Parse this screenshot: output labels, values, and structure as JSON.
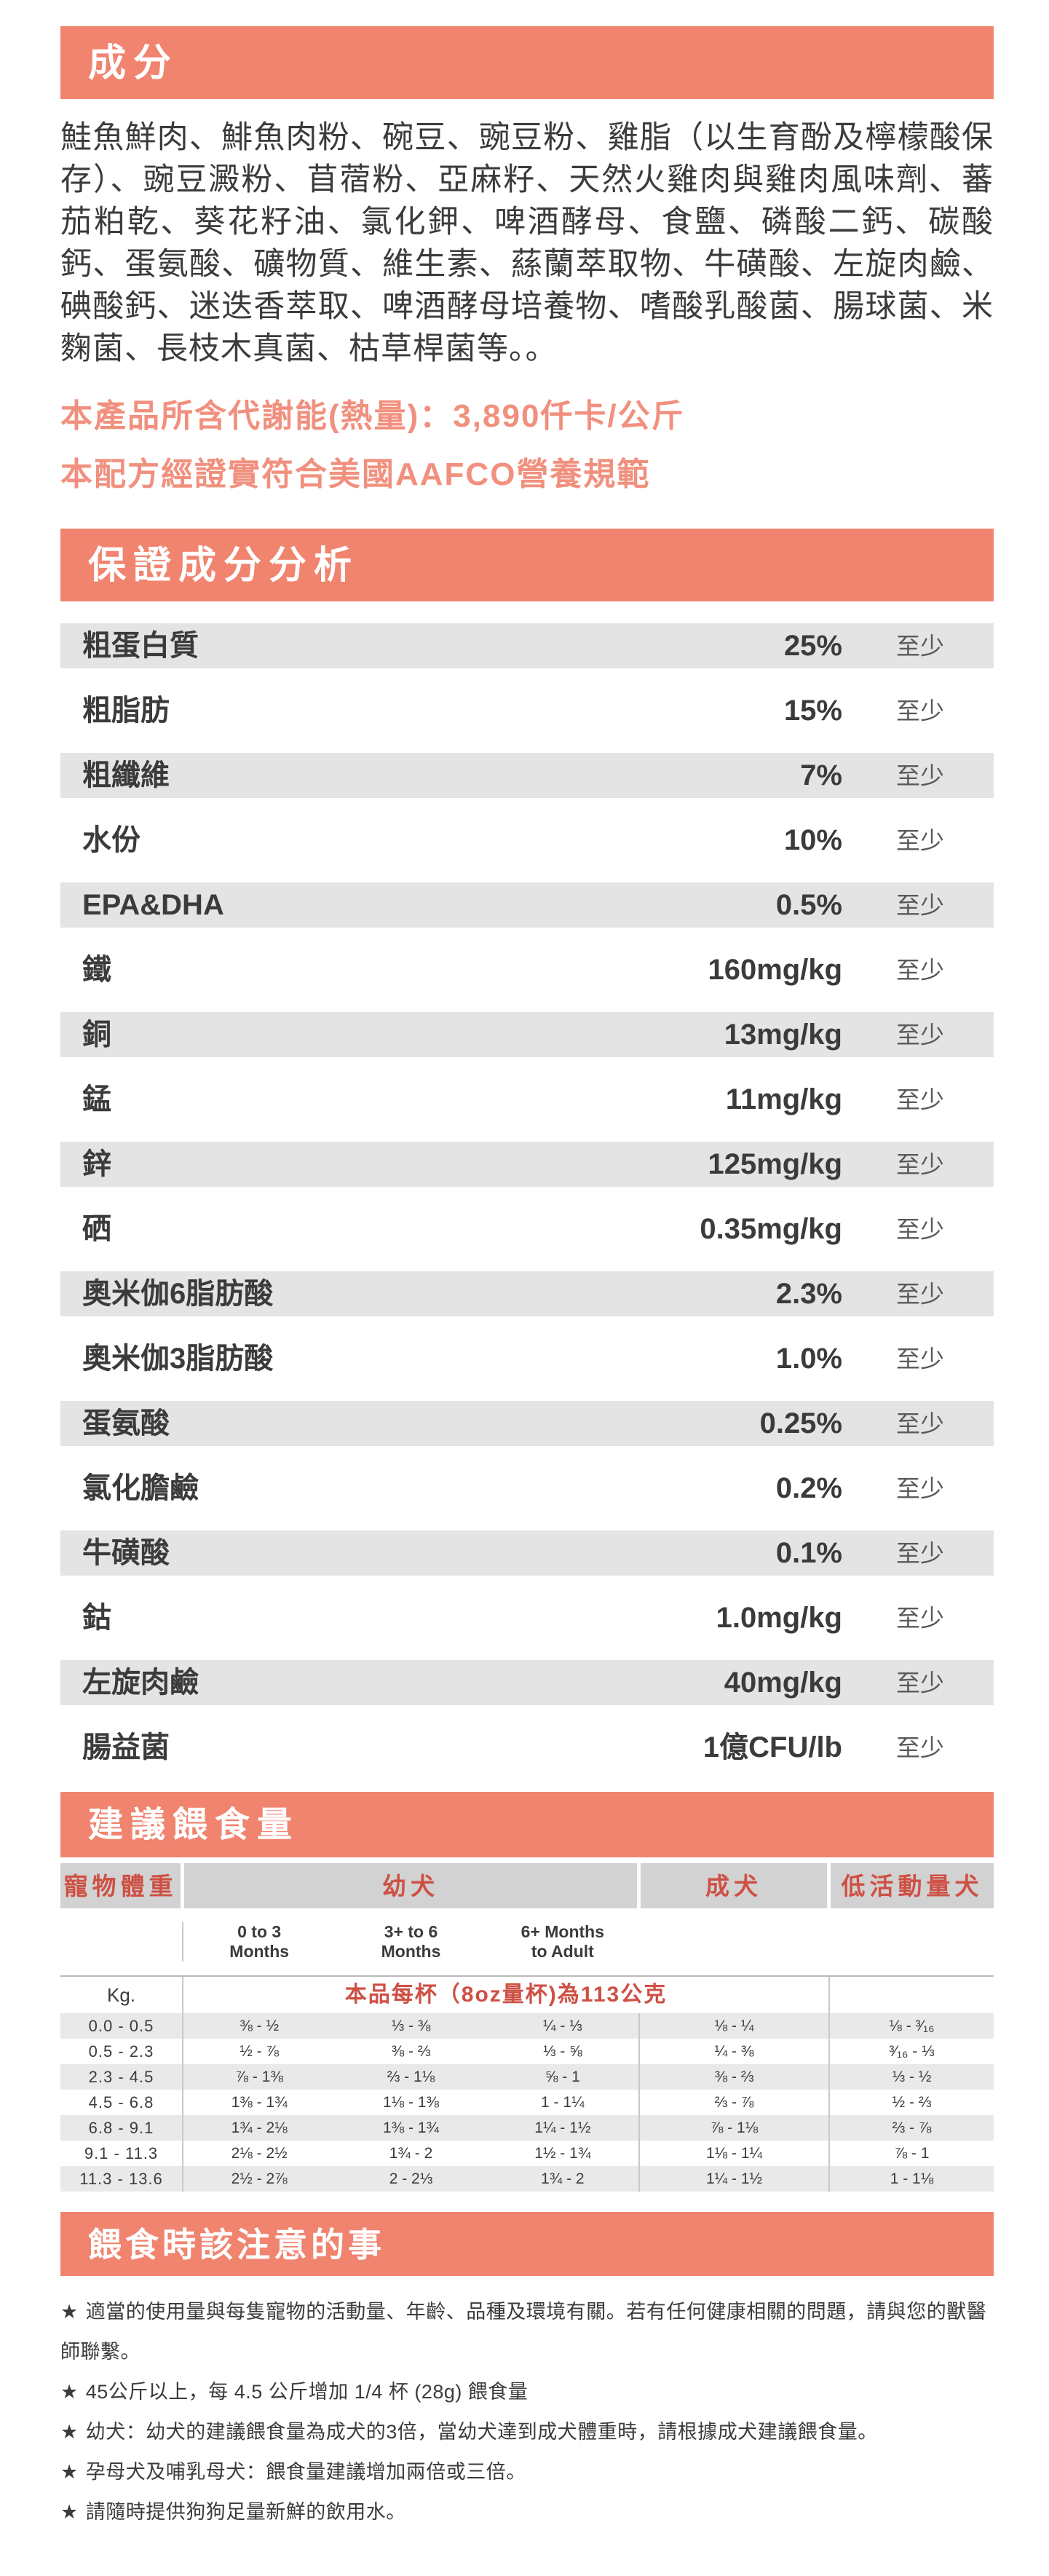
{
  "colors": {
    "accent_band": "#F0846F",
    "accent_text_light": "#F1907E",
    "feeding_header_text": "#CE5044",
    "stripe_gray": "#E4E4E4"
  },
  "ingredients": {
    "title": "成分",
    "text": "鮭魚鮮肉、鯡魚肉粉、碗豆、豌豆粉、雞脂（以生育酚及檸檬酸保存）、豌豆澱粉、苜蓿粉、亞麻籽、天然火雞肉與雞肉風味劑、蕃茄粕乾、葵花籽油、氯化鉀、啤酒酵母、食鹽、磷酸二鈣、碳酸鈣、蛋氨酸、礦物質、維生素、蕬蘭萃取物、牛磺酸、左旋肉鹼、碘酸鈣、迷迭香萃取、啤酒酵母培養物、嗜酸乳酸菌、腸球菌、米麴菌、長枝木真菌、枯草桿菌等。。",
    "energy_line": "本產品所含代謝能(熱量)：3,890仟卡/公斤",
    "aafco_line": "本配方經證實符合美國AAFCO營養規範"
  },
  "analysis": {
    "title": "保證成分分析",
    "suffix": "至少",
    "rows": [
      {
        "name": "粗蛋白質",
        "value": "25%"
      },
      {
        "name": "粗脂肪",
        "value": "15%"
      },
      {
        "name": "粗纖維",
        "value": "7%"
      },
      {
        "name": "水份",
        "value": "10%"
      },
      {
        "name": "EPA&DHA",
        "value": "0.5%"
      },
      {
        "name": "鐵",
        "value": "160mg/kg"
      },
      {
        "name": "銅",
        "value": "13mg/kg"
      },
      {
        "name": "錳",
        "value": "11mg/kg"
      },
      {
        "name": "鋅",
        "value": "125mg/kg"
      },
      {
        "name": "硒",
        "value": "0.35mg/kg"
      },
      {
        "name": "奧米伽6脂肪酸",
        "value": "2.3%"
      },
      {
        "name": "奧米伽3脂肪酸",
        "value": "1.0%"
      },
      {
        "name": "蛋氨酸",
        "value": "0.25%"
      },
      {
        "name": "氯化膽鹼",
        "value": "0.2%"
      },
      {
        "name": "牛磺酸",
        "value": "0.1%"
      },
      {
        "name": "鈷",
        "value": "1.0mg/kg"
      },
      {
        "name": "左旋肉鹼",
        "value": "40mg/kg"
      },
      {
        "name": "腸益菌",
        "value": "1億CFU/lb"
      }
    ]
  },
  "feeding": {
    "title": "建議餵食量",
    "col_headers": [
      "寵物體重",
      "幼犬",
      "成犬",
      "低活動量犬"
    ],
    "puppy_sub": [
      {
        "l1": "0 to 3",
        "l2": "Months"
      },
      {
        "l1": "3+ to 6",
        "l2": "Months"
      },
      {
        "l1": "6+ Months",
        "l2": "to Adult"
      }
    ],
    "unit_label": "Kg.",
    "cup_note": "本品每杯（8oz量杯)為113公克",
    "rows": [
      {
        "kg": "0.0 - 0.5",
        "cells": [
          "⅜ - ½",
          "⅓ - ⅜",
          "¼ - ⅓",
          "⅛ - ¼",
          "⅛ - ³⁄₁₆"
        ]
      },
      {
        "kg": "0.5 - 2.3",
        "cells": [
          "½ - ⅞",
          "⅜ - ⅔",
          "⅓ - ⅝",
          "¼ - ⅜",
          "³⁄₁₆ - ⅓"
        ]
      },
      {
        "kg": "2.3 - 4.5",
        "cells": [
          "⅞ - 1⅜",
          "⅔ - 1⅛",
          "⅝ - 1",
          "⅜ - ⅔",
          "⅓ - ½"
        ]
      },
      {
        "kg": "4.5 - 6.8",
        "cells": [
          "1⅜ - 1¾",
          "1⅛ - 1⅜",
          "1 - 1¼",
          "⅔ - ⅞",
          "½ - ⅔"
        ]
      },
      {
        "kg": "6.8 - 9.1",
        "cells": [
          "1¾ - 2⅛",
          "1⅜ - 1¾",
          "1¼ - 1½",
          "⅞ - 1⅛",
          "⅔ - ⅞"
        ]
      },
      {
        "kg": "9.1 - 11.3",
        "cells": [
          "2⅛ - 2½",
          "1¾ - 2",
          "1½ - 1¾",
          "1⅛ - 1¼",
          "⅞ - 1"
        ]
      },
      {
        "kg": "11.3 - 13.6",
        "cells": [
          "2½ - 2⅞",
          "2 - 2⅓",
          "1¾ - 2",
          "1¼ - 1½",
          "1 - 1⅛"
        ]
      }
    ]
  },
  "notes": {
    "title": "餵食時該注意的事",
    "star": "★",
    "items": [
      "適當的使用量與每隻寵物的活動量、年齡、品種及環境有關。若有任何健康相關的問題，請與您的獸醫師聯繫。",
      "45公斤以上，每 4.5 公斤增加 1/4 杯 (28g) 餵食量",
      "幼犬：幼犬的建議餵食量為成犬的3倍，當幼犬達到成犬體重時，請根據成犬建議餵食量。",
      "孕母犬及哺乳母犬：餵食量建議增加兩倍或三倍。",
      "請隨時提供狗狗足量新鮮的飲用水。"
    ]
  }
}
